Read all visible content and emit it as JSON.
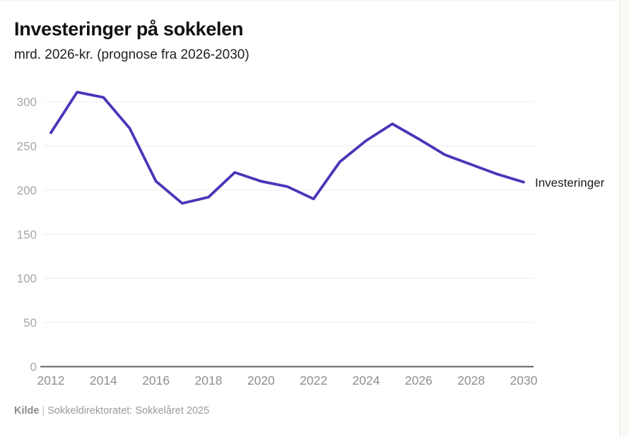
{
  "page": {
    "source_label": "Kilde",
    "source_separator": "|",
    "source_text": "Sokkeldirektoratet: Sokkelåret 2025"
  },
  "chart_data": {
    "type": "line",
    "title": "Investeringer på sokkelen",
    "subtitle": "mrd. 2026-kr. (prognose fra 2026-2030)",
    "xlabel": "",
    "ylabel": "",
    "x": [
      2012,
      2013,
      2014,
      2015,
      2016,
      2017,
      2018,
      2019,
      2020,
      2021,
      2022,
      2023,
      2024,
      2025,
      2026,
      2027,
      2028,
      2029,
      2030
    ],
    "series": [
      {
        "name": "Investeringer",
        "values": [
          265,
          311,
          305,
          270,
          210,
          185,
          192,
          220,
          210,
          204,
          190,
          232,
          256,
          275,
          258,
          240,
          229,
          218,
          209
        ]
      }
    ],
    "x_ticks": [
      2012,
      2014,
      2016,
      2018,
      2020,
      2022,
      2024,
      2026,
      2028,
      2030
    ],
    "y_ticks": [
      0,
      50,
      100,
      150,
      200,
      250,
      300
    ],
    "xlim": [
      2012,
      2030
    ],
    "ylim": [
      0,
      320
    ],
    "grid": "horizontal",
    "legend_position": "line-end-label",
    "colors": {
      "line": "#4737b8",
      "grid": "#ececec",
      "axis": "#606060",
      "tick_text_y": "#a6a6a6",
      "tick_text_x": "#8f8f8f",
      "title_text": "#121212",
      "series_label_text": "#1c1c1c"
    }
  }
}
